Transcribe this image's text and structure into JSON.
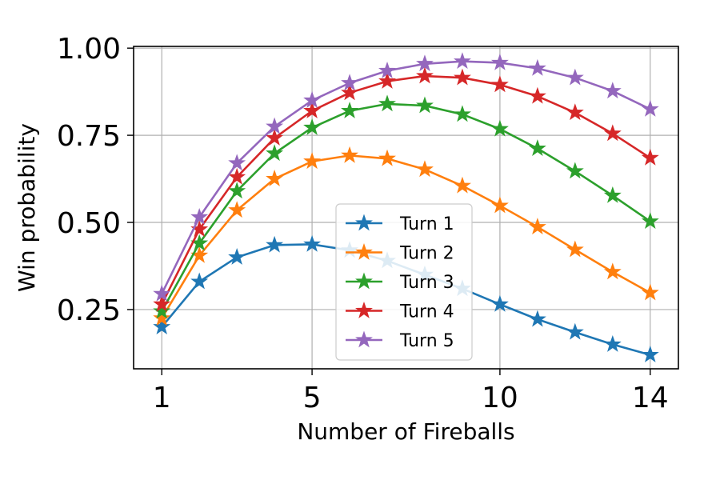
{
  "chart_data": {
    "type": "line",
    "title": "",
    "xlabel": "Number of Fireballs",
    "ylabel": "Win probability",
    "xlim": [
      0.25,
      14.75
    ],
    "ylim": [
      0.08,
      1.005
    ],
    "xticks": [
      1,
      5,
      10,
      14
    ],
    "xtick_labels": [
      "1",
      "5",
      "10",
      "14"
    ],
    "yticks": [
      0.25,
      0.5,
      0.75,
      1.0
    ],
    "ytick_labels": [
      "0.25",
      "0.50",
      "0.75",
      "1.00"
    ],
    "grid": true,
    "legend_position": "lower-center",
    "x": [
      1,
      2,
      3,
      4,
      5,
      6,
      7,
      8,
      9,
      10,
      11,
      12,
      13,
      14
    ],
    "series": [
      {
        "name": "Turn 1",
        "color": "#1f77b4",
        "marker": "star",
        "values": [
          0.2,
          0.33,
          0.4,
          0.435,
          0.437,
          0.42,
          0.39,
          0.35,
          0.31,
          0.265,
          0.222,
          0.185,
          0.15,
          0.12
        ]
      },
      {
        "name": "Turn 2",
        "color": "#ff7f0e",
        "marker": "star",
        "values": [
          0.225,
          0.405,
          0.535,
          0.625,
          0.675,
          0.692,
          0.683,
          0.652,
          0.605,
          0.548,
          0.487,
          0.422,
          0.358,
          0.298
        ]
      },
      {
        "name": "Turn 3",
        "color": "#2ca02c",
        "marker": "star",
        "values": [
          0.245,
          0.44,
          0.59,
          0.698,
          0.772,
          0.82,
          0.84,
          0.835,
          0.81,
          0.768,
          0.712,
          0.647,
          0.577,
          0.503
        ]
      },
      {
        "name": "Turn 4",
        "color": "#d62728",
        "marker": "star",
        "values": [
          0.265,
          0.48,
          0.63,
          0.742,
          0.82,
          0.872,
          0.905,
          0.92,
          0.915,
          0.895,
          0.862,
          0.815,
          0.755,
          0.685
        ]
      },
      {
        "name": "Turn 5",
        "color": "#9467bd",
        "marker": "star",
        "values": [
          0.295,
          0.515,
          0.67,
          0.775,
          0.85,
          0.9,
          0.935,
          0.955,
          0.962,
          0.958,
          0.942,
          0.915,
          0.877,
          0.825
        ]
      }
    ]
  }
}
